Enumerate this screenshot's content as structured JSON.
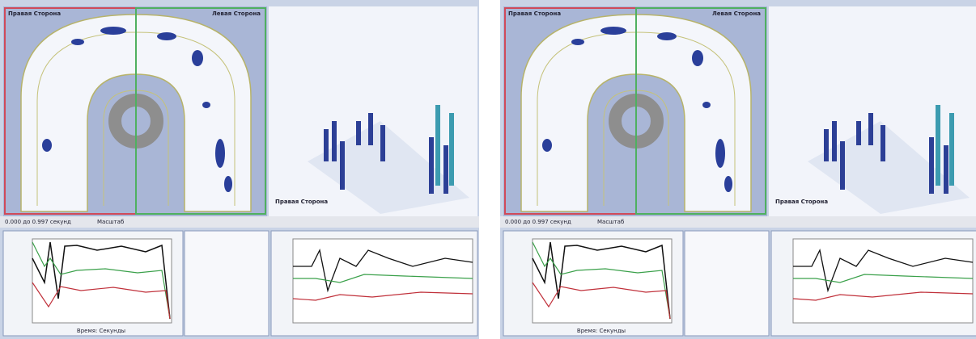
{
  "panels": [
    {
      "arch_left": "Правая Сторона",
      "arch_right": "Левая Сторона",
      "view3d": "Правая Сторона",
      "status_time": "0.000 до 0.997 секунд",
      "status_scale": "Масштаб",
      "x_axis": "Время: Секунды"
    },
    {
      "arch_left": "Правая Сторона",
      "arch_right": "Левая Сторона",
      "view3d": "Правая Сторона",
      "status_time": "0.000 до 0.997 секунд",
      "status_scale": "Масштаб",
      "x_axis": "Время: Секунды"
    }
  ]
}
